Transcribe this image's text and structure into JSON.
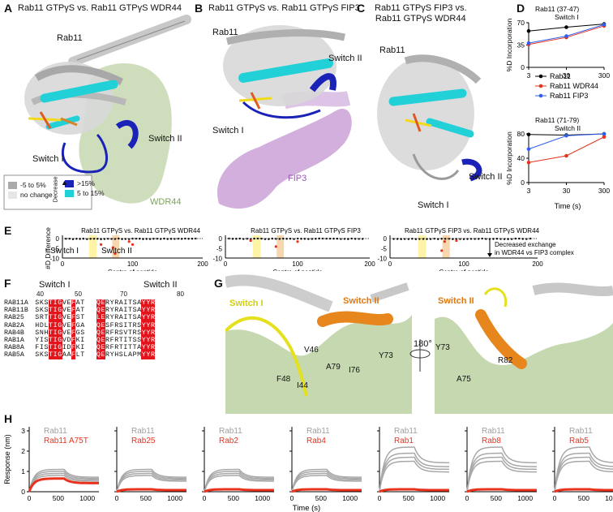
{
  "panels": {
    "A": {
      "letter": "A",
      "title_pre": "Rab11 GTP",
      "title_gamma": "γ",
      "title_mid": "S vs. Rab11 GTP",
      "title_gamma2": "γ",
      "title_post": "S WDR44",
      "rab11_label": "Rab11",
      "switch1_label": "Switch I",
      "switch2_label": "Switch II",
      "partner_label": "WDR44",
      "legend": {
        "decrease_label": "Decrease",
        "items": [
          {
            "label": "-5 to 5%",
            "color": "#aaaaaa"
          },
          {
            "label": "no change",
            "color": "#e6e6e6"
          },
          {
            "label": ">15%",
            "color": "#1a22b8"
          },
          {
            "label": "5 to 15%",
            "color": "#22d0d8"
          }
        ]
      }
    },
    "B": {
      "letter": "B",
      "title_pre": "Rab11 GTP",
      "title_gamma": "γ",
      "title_mid": "S vs. Rab11 GTP",
      "title_gamma2": "γ",
      "title_post": "S FIP3",
      "rab11_label": "Rab11",
      "switch1_label": "Switch I",
      "switch2_label": "Switch II",
      "partner_label": "FIP3"
    },
    "C": {
      "letter": "C",
      "title_line1_pre": "Rab11 GTP",
      "title_line1_gamma": "γ",
      "title_line1_post": "S FIP3 vs.",
      "title_line2_pre": "Rab11 GTP",
      "title_line2_gamma": "γ",
      "title_line2_post": "S WDR44",
      "rab11_label": "Rab11",
      "switch1_label": "Switch I",
      "switch2_label": "Switch II"
    },
    "D": {
      "letter": "D",
      "ylabel": "%D Incorporation",
      "xlabel": "Time (s)",
      "legend": [
        "Rab11",
        "Rab11 WDR44",
        "Rab11 FIP3"
      ]
    },
    "E": {
      "letter": "E",
      "ylabel": "#D Difference",
      "xlabel": "Centre of peptide",
      "subplots": [
        {
          "title_pre": "Rab11 GTP",
          "g1": "γ",
          "title_mid": "S vs. Rab11 GTP",
          "g2": "γ",
          "title_post": "S WDR44",
          "sw1": "Switch I",
          "sw2": "Switch II"
        },
        {
          "title_pre": "Rab11 GTP",
          "g1": "γ",
          "title_mid": "S vs. Rab11 GTP",
          "g2": "γ",
          "title_post": "S FIP3"
        },
        {
          "title_pre": "Rab11 GTP",
          "g1": "γ",
          "title_mid": "S FIP3 vs. Rab11 GTP",
          "g2": "γ",
          "title_post": "S WDR44",
          "note1": "Decreased exchange",
          "note2": "in WDR44 vs FIP3 complex"
        }
      ],
      "yticks": [
        "0",
        "-5",
        "-10"
      ],
      "xticks": [
        "0",
        "100",
        "200"
      ]
    },
    "F": {
      "letter": "F",
      "switch1_label": "Switch I",
      "switch2_label": "Switch II",
      "num40": "40",
      "num50": "50",
      "num70": "70",
      "num80": "80",
      "rows": [
        {
          "name": "RAB11A",
          "s1": "SKSTIGVEFAT",
          "s2": "QERYRAITSAYYR"
        },
        {
          "name": "RAB11B",
          "s1": "SKSTIGVEFAT",
          "s2": "QERYRAITSAYYR"
        },
        {
          "name": "RAB25",
          "s1": "SRTTIGVEFST",
          "s2": "LERYRAITSAYYR"
        },
        {
          "name": "RAB2A",
          "s1": "HDLTIGVEFGA",
          "s2": "QESFRSITRSYYR"
        },
        {
          "name": "RAB4B",
          "s1": "SNHTIGVEFGS",
          "s2": "QERFRSVTRSYYR"
        },
        {
          "name": "RAB1A",
          "s1": "YISTIGVDFKI",
          "s2": "QERFRTITSSYYR"
        },
        {
          "name": "RAB8A",
          "s1": "FISTIGIDFKI",
          "s2": "QERFRTITTAYYR"
        },
        {
          "name": "RAB5A",
          "s1": "SKSTIGAAFLT",
          "s2": "QERYHSLAPMYYR"
        }
      ]
    },
    "G": {
      "letter": "G",
      "switch1_label": "Switch I",
      "switch2_label": "Switch II",
      "switch2_label_right": "Switch II",
      "rotation": "180°",
      "residues_left": [
        "V46",
        "A79",
        "I76",
        "Y73",
        "F48",
        "I44"
      ],
      "residues_right": [
        "Y73",
        "A75",
        "R82"
      ]
    },
    "H": {
      "letter": "H",
      "ylabel": "Response (nm)",
      "xlabel": "Time (s)",
      "xticks": [
        "0",
        "500",
        "1000"
      ],
      "yticks": [
        "0",
        "1",
        "2",
        "3"
      ],
      "plots": [
        {
          "ref": "Rab11",
          "test": "Rab11 A75T"
        },
        {
          "ref": "Rab11",
          "test": "Rab25"
        },
        {
          "ref": "Rab11",
          "test": "Rab2"
        },
        {
          "ref": "Rab11",
          "test": "Rab4"
        },
        {
          "ref": "Rab11",
          "test": "Rab1"
        },
        {
          "ref": "Rab11",
          "test": "Rab8"
        },
        {
          "ref": "Rab11",
          "test": "Rab5"
        }
      ]
    }
  },
  "chart_data": [
    {
      "type": "line",
      "title": "Rab11 (37-47)",
      "subtitle": "Switch I",
      "xlabel": "Time (s)",
      "ylabel": "%D Incorporation",
      "x": [
        3,
        30,
        300
      ],
      "ylim": [
        0,
        70
      ],
      "yticks": [
        0,
        35,
        70
      ],
      "xscale": "log",
      "series": [
        {
          "name": "Rab11",
          "color": "#000000",
          "values": [
            57,
            63,
            68
          ]
        },
        {
          "name": "Rab11 WDR44",
          "color": "#e8321e",
          "values": [
            36,
            47,
            65
          ]
        },
        {
          "name": "Rab11 FIP3",
          "color": "#2f5ef0",
          "values": [
            38,
            49,
            67
          ]
        }
      ]
    },
    {
      "type": "line",
      "title": "Rab11 (71-79)",
      "subtitle": "Switch II",
      "xlabel": "Time (s)",
      "ylabel": "%D Incorporation",
      "x": [
        3,
        30,
        300
      ],
      "ylim": [
        0,
        80
      ],
      "yticks": [
        0,
        40,
        80
      ],
      "xscale": "log",
      "series": [
        {
          "name": "Rab11",
          "color": "#000000",
          "values": [
            79,
            78,
            80
          ]
        },
        {
          "name": "Rab11 WDR44",
          "color": "#e8321e",
          "values": [
            33,
            44,
            75
          ]
        },
        {
          "name": "Rab11 FIP3",
          "color": "#2f5ef0",
          "values": [
            55,
            77,
            80
          ]
        }
      ]
    }
  ]
}
